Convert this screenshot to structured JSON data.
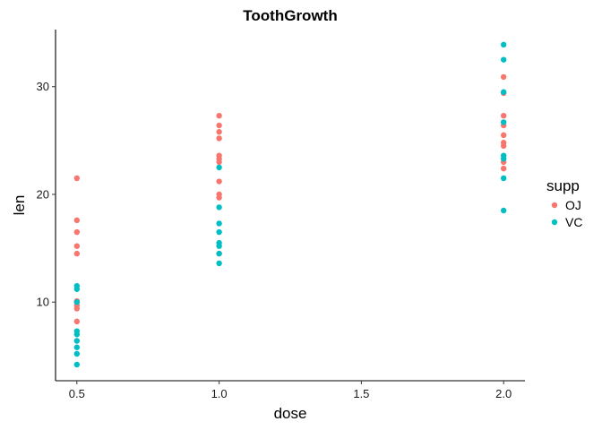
{
  "chart_data": {
    "type": "scatter",
    "title": "ToothGrowth",
    "xlabel": "dose",
    "ylabel": "len",
    "x_ticks": [
      "0.5",
      "1.0",
      "1.5",
      "2.0"
    ],
    "y_ticks": [
      "10",
      "20",
      "30"
    ],
    "xlim": [
      0.425,
      2.075
    ],
    "ylim": [
      2.7,
      35.3
    ],
    "grid": false,
    "legend": {
      "title": "supp",
      "position": "right"
    },
    "series": [
      {
        "name": "OJ",
        "color": "#F8766D",
        "points": [
          {
            "x": 0.5,
            "y": 21.5
          },
          {
            "x": 0.5,
            "y": 17.6
          },
          {
            "x": 0.5,
            "y": 16.5
          },
          {
            "x": 0.5,
            "y": 15.2
          },
          {
            "x": 0.5,
            "y": 14.5
          },
          {
            "x": 0.5,
            "y": 10.0
          },
          {
            "x": 0.5,
            "y": 9.7
          },
          {
            "x": 0.5,
            "y": 9.4
          },
          {
            "x": 0.5,
            "y": 8.2
          },
          {
            "x": 0.5,
            "y": 10.1
          },
          {
            "x": 1.0,
            "y": 27.3
          },
          {
            "x": 1.0,
            "y": 26.4
          },
          {
            "x": 1.0,
            "y": 25.8
          },
          {
            "x": 1.0,
            "y": 25.2
          },
          {
            "x": 1.0,
            "y": 23.6
          },
          {
            "x": 1.0,
            "y": 23.3
          },
          {
            "x": 1.0,
            "y": 23.0
          },
          {
            "x": 1.0,
            "y": 21.2
          },
          {
            "x": 1.0,
            "y": 20.0
          },
          {
            "x": 1.0,
            "y": 19.7
          },
          {
            "x": 1.0,
            "y": 14.5
          },
          {
            "x": 2.0,
            "y": 30.9
          },
          {
            "x": 2.0,
            "y": 29.4
          },
          {
            "x": 2.0,
            "y": 27.3
          },
          {
            "x": 2.0,
            "y": 26.4
          },
          {
            "x": 2.0,
            "y": 25.5
          },
          {
            "x": 2.0,
            "y": 24.8
          },
          {
            "x": 2.0,
            "y": 24.5
          },
          {
            "x": 2.0,
            "y": 23.0
          },
          {
            "x": 2.0,
            "y": 22.4
          }
        ]
      },
      {
        "name": "VC",
        "color": "#00BFC4",
        "points": [
          {
            "x": 0.5,
            "y": 11.5
          },
          {
            "x": 0.5,
            "y": 11.2
          },
          {
            "x": 0.5,
            "y": 10.0
          },
          {
            "x": 0.5,
            "y": 7.3
          },
          {
            "x": 0.5,
            "y": 7.0
          },
          {
            "x": 0.5,
            "y": 6.4
          },
          {
            "x": 0.5,
            "y": 5.8
          },
          {
            "x": 0.5,
            "y": 5.2
          },
          {
            "x": 0.5,
            "y": 4.2
          },
          {
            "x": 1.0,
            "y": 22.5
          },
          {
            "x": 1.0,
            "y": 18.8
          },
          {
            "x": 1.0,
            "y": 17.3
          },
          {
            "x": 1.0,
            "y": 16.5
          },
          {
            "x": 1.0,
            "y": 15.5
          },
          {
            "x": 1.0,
            "y": 15.2
          },
          {
            "x": 1.0,
            "y": 14.5
          },
          {
            "x": 1.0,
            "y": 13.6
          },
          {
            "x": 2.0,
            "y": 33.9
          },
          {
            "x": 2.0,
            "y": 32.5
          },
          {
            "x": 2.0,
            "y": 29.5
          },
          {
            "x": 2.0,
            "y": 26.7
          },
          {
            "x": 2.0,
            "y": 23.6
          },
          {
            "x": 2.0,
            "y": 23.3
          },
          {
            "x": 2.0,
            "y": 21.5
          },
          {
            "x": 2.0,
            "y": 18.5
          }
        ]
      }
    ]
  }
}
